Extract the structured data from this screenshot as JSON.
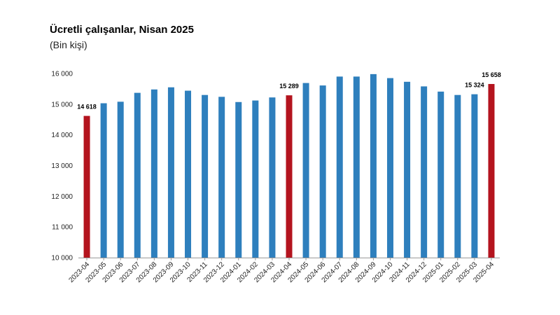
{
  "title": "Ücretli çalışanlar, Nisan 2025",
  "subtitle": "(Bin kişi)",
  "colors": {
    "normal": "#2e7fbd",
    "highlight": "#b4141e",
    "axis": "#999999"
  },
  "chart_data": {
    "type": "bar",
    "title": "Ücretli çalışanlar, Nisan 2025",
    "subtitle": "(Bin kişi)",
    "xlabel": "",
    "ylabel": "",
    "ylim": [
      10000,
      16000
    ],
    "yticks": [
      10000,
      11000,
      12000,
      13000,
      14000,
      15000,
      16000
    ],
    "ytick_labels": [
      "10 000",
      "11 000",
      "12 000",
      "13 000",
      "14 000",
      "15 000",
      "16 000"
    ],
    "grid": false,
    "categories": [
      "2023-04",
      "2023-05",
      "2023-06",
      "2023-07",
      "2023-08",
      "2023-09",
      "2023-10",
      "2023-11",
      "2023-12",
      "2024-01",
      "2024-02",
      "2024-03",
      "2024-04",
      "2024-05",
      "2024-06",
      "2024-07",
      "2024-08",
      "2024-09",
      "2024-10",
      "2024-11",
      "2024-12",
      "2025-01",
      "2025-02",
      "2025-03",
      "2025-04"
    ],
    "values": [
      14618,
      15030,
      15080,
      15370,
      15480,
      15550,
      15440,
      15300,
      15240,
      15070,
      15120,
      15220,
      15289,
      15690,
      15610,
      15900,
      15900,
      15980,
      15850,
      15730,
      15580,
      15410,
      15300,
      15324,
      15658
    ],
    "highlighted": [
      0,
      12,
      24
    ],
    "data_labels": [
      {
        "index": 0,
        "text": "14 618"
      },
      {
        "index": 12,
        "text": "15 289"
      },
      {
        "index": 23,
        "text": "15 324"
      },
      {
        "index": 24,
        "text": "15 658"
      }
    ]
  }
}
